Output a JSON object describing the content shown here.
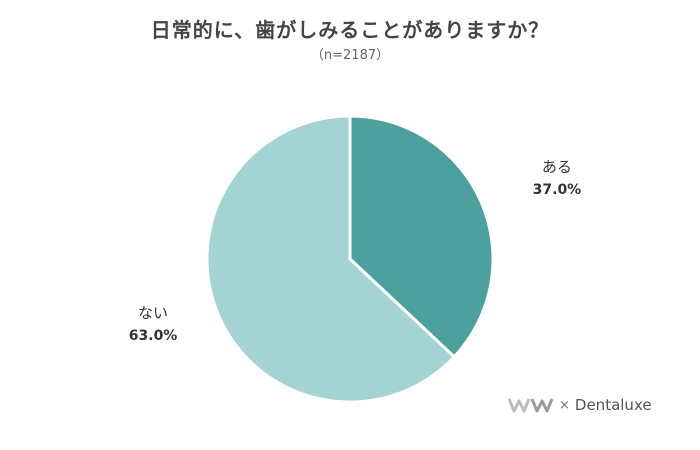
{
  "title": "日常的に、歯がしみることがありますか？",
  "subtitle": "（n=2187）",
  "chart_data": {
    "type": "pie",
    "start_angle_deg": 0,
    "direction": "clockwise",
    "slices": [
      {
        "label": "ある",
        "value": 37.0,
        "display": "37.0%",
        "color": "#4ca19f"
      },
      {
        "label": "ない",
        "value": 63.0,
        "display": "63.0%",
        "color": "#a3d3d2"
      }
    ],
    "legend": "none"
  },
  "brand": {
    "logo": "wm-logo-icon",
    "times": "×",
    "name": "Dentaluxe"
  }
}
